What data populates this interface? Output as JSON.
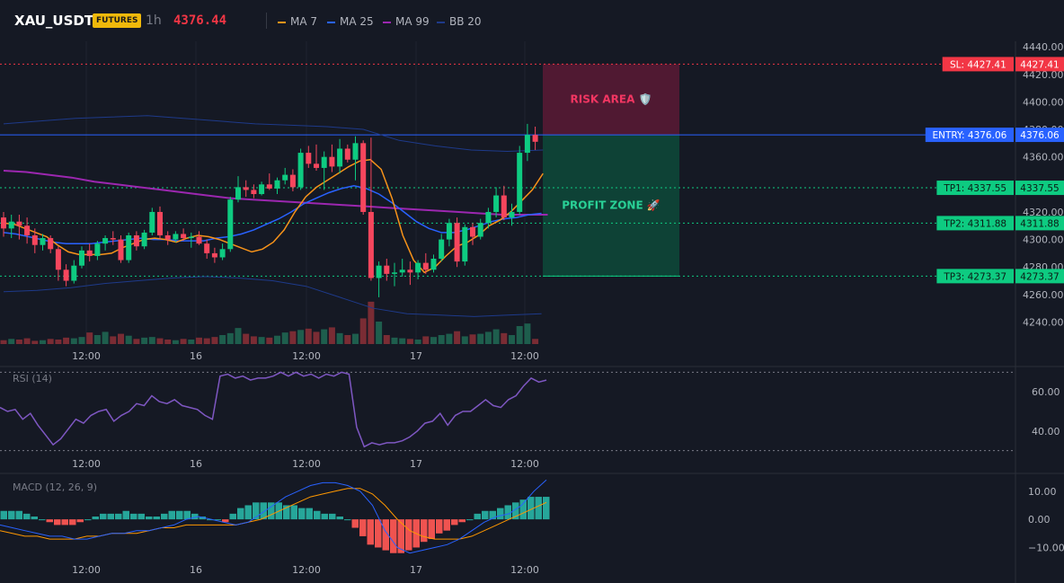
{
  "header": {
    "symbol": "XAU_USDT",
    "badge": "FUTURES",
    "interval": "1h",
    "price": "4376.44",
    "legend": [
      {
        "name": "MA 7",
        "color": "#f7931a"
      },
      {
        "name": "MA 25",
        "color": "#2962ff"
      },
      {
        "name": "MA 99",
        "color": "#9c27b0"
      },
      {
        "name": "BB 20",
        "color": "#1e3a8a"
      }
    ]
  },
  "chart_data": [
    {
      "type": "candlestick",
      "price_axis": {
        "ticks": [
          "4440.00",
          "4420.00",
          "4400.00",
          "4380.00",
          "4360.00",
          "4340.00",
          "4320.00",
          "4300.00",
          "4280.00",
          "4260.00",
          "4240.00"
        ],
        "ylim": [
          4224,
          4444
        ]
      },
      "time_ticks": [
        "12:00",
        "16",
        "12:00",
        "17",
        "12:00"
      ],
      "ohlc": [
        [
          4316,
          4320,
          4302,
          4308
        ],
        [
          4308,
          4318,
          4301,
          4313
        ],
        [
          4313,
          4318,
          4300,
          4310
        ],
        [
          4310,
          4316,
          4297,
          4303
        ],
        [
          4303,
          4308,
          4290,
          4296
        ],
        [
          4296,
          4304,
          4292,
          4301
        ],
        [
          4301,
          4303,
          4290,
          4293
        ],
        [
          4293,
          4295,
          4270,
          4278
        ],
        [
          4278,
          4282,
          4266,
          4270
        ],
        [
          4270,
          4285,
          4268,
          4281
        ],
        [
          4281,
          4295,
          4279,
          4292
        ],
        [
          4292,
          4297,
          4284,
          4288
        ],
        [
          4288,
          4299,
          4285,
          4297
        ],
        [
          4297,
          4303,
          4292,
          4301
        ],
        [
          4301,
          4306,
          4296,
          4300
        ],
        [
          4300,
          4303,
          4283,
          4285
        ],
        [
          4285,
          4305,
          4283,
          4303
        ],
        [
          4303,
          4306,
          4292,
          4295
        ],
        [
          4295,
          4307,
          4293,
          4305
        ],
        [
          4305,
          4323,
          4303,
          4320
        ],
        [
          4320,
          4324,
          4300,
          4303
        ],
        [
          4303,
          4306,
          4296,
          4300
        ],
        [
          4300,
          4306,
          4298,
          4304
        ],
        [
          4304,
          4308,
          4299,
          4301
        ],
        [
          4301,
          4305,
          4294,
          4302
        ],
        [
          4302,
          4306,
          4296,
          4297
        ],
        [
          4297,
          4300,
          4286,
          4290
        ],
        [
          4290,
          4294,
          4283,
          4287
        ],
        [
          4287,
          4297,
          4285,
          4293
        ],
        [
          4293,
          4331,
          4291,
          4329
        ],
        [
          4329,
          4346,
          4327,
          4338
        ],
        [
          4338,
          4343,
          4331,
          4336
        ],
        [
          4336,
          4340,
          4330,
          4333
        ],
        [
          4333,
          4342,
          4332,
          4340
        ],
        [
          4340,
          4348,
          4336,
          4337
        ],
        [
          4337,
          4345,
          4333,
          4343
        ],
        [
          4343,
          4352,
          4340,
          4347
        ],
        [
          4347,
          4351,
          4335,
          4338
        ],
        [
          4338,
          4366,
          4336,
          4363
        ],
        [
          4363,
          4368,
          4352,
          4355
        ],
        [
          4355,
          4369,
          4350,
          4352
        ],
        [
          4352,
          4364,
          4336,
          4360
        ],
        [
          4360,
          4369,
          4349,
          4353
        ],
        [
          4353,
          4373,
          4348,
          4366
        ],
        [
          4366,
          4369,
          4356,
          4358
        ],
        [
          4358,
          4375,
          4343,
          4370
        ],
        [
          4370,
          4372,
          4318,
          4320
        ],
        [
          4320,
          4374,
          4270,
          4272
        ],
        [
          4272,
          4284,
          4258,
          4281
        ],
        [
          4281,
          4286,
          4270,
          4275
        ],
        [
          4275,
          4283,
          4266,
          4276
        ],
        [
          4276,
          4286,
          4273,
          4278
        ],
        [
          4278,
          4284,
          4267,
          4276
        ],
        [
          4276,
          4285,
          4271,
          4283
        ],
        [
          4283,
          4290,
          4275,
          4278
        ],
        [
          4278,
          4289,
          4276,
          4286
        ],
        [
          4286,
          4304,
          4284,
          4300
        ],
        [
          4300,
          4315,
          4295,
          4312
        ],
        [
          4312,
          4316,
          4280,
          4284
        ],
        [
          4284,
          4311,
          4281,
          4309
        ],
        [
          4309,
          4312,
          4296,
          4302
        ],
        [
          4302,
          4315,
          4300,
          4312
        ],
        [
          4312,
          4323,
          4308,
          4320
        ],
        [
          4320,
          4338,
          4316,
          4332
        ],
        [
          4332,
          4339,
          4314,
          4316
        ],
        [
          4316,
          4326,
          4310,
          4320
        ],
        [
          4320,
          4368,
          4318,
          4363
        ],
        [
          4363,
          4384,
          4357,
          4376
        ],
        [
          4376,
          4382,
          4365,
          4371
        ]
      ],
      "volume": [
        6,
        8,
        7,
        9,
        5,
        6,
        8,
        7,
        10,
        9,
        11,
        18,
        14,
        19,
        12,
        16,
        13,
        8,
        10,
        11,
        9,
        7,
        6,
        8,
        7,
        10,
        9,
        11,
        14,
        17,
        25,
        16,
        12,
        11,
        10,
        13,
        18,
        20,
        22,
        24,
        19,
        23,
        26,
        17,
        14,
        16,
        40,
        66,
        35,
        14,
        10,
        9,
        8,
        7,
        12,
        11,
        14,
        16,
        20,
        12,
        15,
        16,
        19,
        23,
        17,
        14,
        28,
        32,
        8
      ],
      "ma7": [
        4312,
        4311,
        4308,
        4305,
        4302,
        4296,
        4291,
        4289,
        4289,
        4289,
        4290,
        4294,
        4297,
        4300,
        4301,
        4300,
        4298,
        4301,
        4303,
        4302,
        4300,
        4297,
        4294,
        4291,
        4293,
        4298,
        4307,
        4320,
        4331,
        4338,
        4343,
        4348,
        4353,
        4357,
        4358,
        4351,
        4330,
        4303,
        4285,
        4276,
        4280,
        4288,
        4295,
        4298,
        4303,
        4310,
        4314,
        4320,
        4328,
        4336,
        4348
      ],
      "ma25": [
        4305,
        4304,
        4302,
        4300,
        4298,
        4297,
        4297,
        4297,
        4298,
        4299,
        4300,
        4301,
        4300,
        4300,
        4299,
        4299,
        4299,
        4301,
        4302,
        4304,
        4307,
        4311,
        4315,
        4320,
        4326,
        4330,
        4334,
        4337,
        4339,
        4337,
        4333,
        4327,
        4320,
        4313,
        4308,
        4305,
        4305,
        4307,
        4310,
        4313,
        4315,
        4316,
        4318,
        4319
      ],
      "ma99": [
        4350,
        4349,
        4347,
        4345,
        4342,
        4340,
        4338,
        4336,
        4334,
        4332,
        4330,
        4329,
        4328,
        4327,
        4326,
        4325,
        4324,
        4323,
        4322,
        4321,
        4320,
        4319,
        4318,
        4318,
        4318
      ],
      "bb_upper": [
        4384,
        4386,
        4388,
        4389,
        4390,
        4388,
        4386,
        4384,
        4383,
        4382,
        4380,
        4372,
        4368,
        4365,
        4364,
        4365
      ],
      "bb_lower": [
        4262,
        4263,
        4265,
        4268,
        4270,
        4272,
        4273,
        4272,
        4270,
        4266,
        4258,
        4250,
        4246,
        4245,
        4244,
        4245,
        4246
      ],
      "risk_area": {
        "label": "RISK AREA 🛡️",
        "from": 4376.06,
        "to": 4427.41
      },
      "profit_zone": {
        "label": "PROFIT ZONE 🚀",
        "from": 4273.37,
        "to": 4376.06
      },
      "levels": [
        {
          "tag": "SL: 4427.41",
          "value": 4427.41,
          "axis": "4427.41",
          "color": "#f23645",
          "style": "dotted"
        },
        {
          "tag": "ENTRY: 4376.06",
          "value": 4376.06,
          "axis": "4376.06",
          "color": "#2962ff",
          "style": "solid"
        },
        {
          "tag": "TP1: 4337.55",
          "value": 4337.55,
          "axis": "4337.55",
          "color": "#0ecb81",
          "style": "dotted"
        },
        {
          "tag": "TP2: 4311.88",
          "value": 4311.88,
          "axis": "4311.88",
          "color": "#0ecb81",
          "style": "dotted"
        },
        {
          "tag": "TP3: 4273.37",
          "value": 4273.37,
          "axis": "4273.37",
          "color": "#0ecb81",
          "style": "dotted"
        }
      ]
    },
    {
      "type": "line",
      "title": "RSI (14)",
      "ticks": [
        "60.00",
        "40.00"
      ],
      "ylim": [
        28,
        72
      ],
      "bands": [
        70,
        30
      ],
      "values": [
        52,
        50,
        51,
        46,
        49,
        43,
        38,
        33,
        36,
        41,
        46,
        44,
        48,
        50,
        51,
        45,
        48,
        50,
        54,
        53,
        58,
        55,
        54,
        56,
        53,
        52,
        51,
        48,
        46,
        68,
        69,
        67,
        68,
        66,
        67,
        67,
        68,
        70,
        68,
        70,
        68,
        69,
        67,
        69,
        68,
        70,
        69,
        42,
        32,
        34,
        33,
        34,
        34,
        35,
        37,
        40,
        44,
        45,
        49,
        43,
        48,
        50,
        50,
        53,
        56,
        53,
        52,
        56,
        58,
        63,
        67,
        65,
        66
      ]
    },
    {
      "type": "bar",
      "title": "MACD (12, 26, 9)",
      "ticks": [
        "10.00",
        "0.00",
        "−10.00"
      ],
      "ylim": [
        -14,
        16
      ],
      "histogram": [
        3,
        3,
        3,
        2,
        1,
        0,
        -1,
        -2,
        -2,
        -2,
        -1,
        0,
        1,
        2,
        2,
        2,
        3,
        2,
        2,
        1,
        1,
        2,
        3,
        3,
        3,
        2,
        1,
        0,
        0,
        -1,
        2,
        4,
        5,
        6,
        6,
        6,
        6,
        5,
        5,
        4,
        4,
        3,
        2,
        2,
        1,
        0,
        -3,
        -6,
        -9,
        -10,
        -11,
        -12,
        -12,
        -11,
        -10,
        -8,
        -7,
        -5,
        -4,
        -2,
        -1,
        0,
        2,
        3,
        3,
        4,
        5,
        6,
        7,
        8,
        8,
        8
      ],
      "macd": [
        -2,
        -3,
        -4,
        -5,
        -6,
        -6,
        -7,
        -7,
        -6,
        -5,
        -5,
        -4,
        -4,
        -3,
        -2,
        0,
        1,
        0,
        -1,
        -2,
        -1,
        2,
        5,
        8,
        10,
        12,
        13,
        13,
        12,
        10,
        5,
        -4,
        -10,
        -12,
        -11,
        -10,
        -9,
        -7,
        -4,
        -1,
        1,
        2,
        5,
        10,
        14
      ],
      "signal": [
        -4,
        -5,
        -6,
        -6,
        -7,
        -7,
        -7,
        -6,
        -6,
        -5,
        -5,
        -5,
        -4,
        -3,
        -3,
        -2,
        -2,
        -2,
        -2,
        -2,
        -1,
        0,
        2,
        4,
        6,
        8,
        9,
        10,
        11,
        11,
        9,
        5,
        0,
        -4,
        -6,
        -7,
        -7,
        -7,
        -6,
        -4,
        -2,
        0,
        2,
        4,
        6
      ]
    }
  ]
}
